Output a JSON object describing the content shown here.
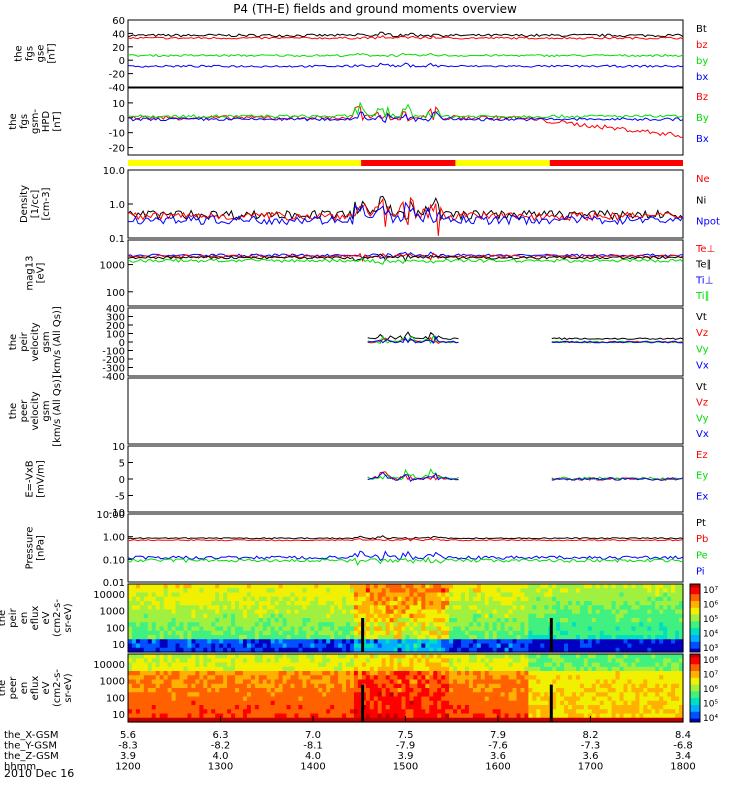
{
  "title": "P4 (TH-E) fields and ground moments overview",
  "date": "2010 Dec 16",
  "colors": {
    "black": "#000000",
    "red": "#ff0000",
    "green": "#00dd00",
    "blue": "#0000ff",
    "yellow": "#ffff00"
  },
  "chart_data": {
    "type": "line",
    "x_axis": {
      "range": [
        "1200",
        "1800"
      ],
      "rows": [
        {
          "label": "the_X-GSM",
          "values": [
            "5.6",
            "6.3",
            "7.0",
            "7.5",
            "7.9",
            "8.2",
            "8.4"
          ]
        },
        {
          "label": "the_Y-GSM",
          "values": [
            "-8.3",
            "-8.2",
            "-8.1",
            "-7.9",
            "-7.6",
            "-7.3",
            "-6.8"
          ]
        },
        {
          "label": "the_Z-GSM",
          "values": [
            "3.9",
            "4.0",
            "4.0",
            "3.9",
            "3.6",
            "3.6",
            "3.4"
          ]
        },
        {
          "label": "hhmm",
          "values": [
            "1200",
            "1300",
            "1400",
            "1500",
            "1600",
            "1700",
            "1800"
          ]
        }
      ]
    },
    "panels": [
      {
        "ylabel": [
          "the",
          "fgs",
          "gse",
          "[nT]"
        ],
        "ylim": [
          -40,
          60
        ],
        "ticks": [
          "60",
          "40",
          "20",
          "0",
          "-20",
          "-40"
        ],
        "legend": [
          {
            "name": "Bt",
            "color": "black"
          },
          {
            "name": "bz",
            "color": "red"
          },
          {
            "name": "by",
            "color": "green"
          },
          {
            "name": "bx",
            "color": "blue"
          }
        ],
        "series": [
          {
            "name": "Bt",
            "color": "black",
            "base": 37,
            "noise": 2,
            "burst": 6
          },
          {
            "name": "bz",
            "color": "red",
            "base": 33,
            "noise": 1.5,
            "burst": 5
          },
          {
            "name": "by",
            "color": "green",
            "base": 7,
            "noise": 1.5,
            "burst": 4
          },
          {
            "name": "bx",
            "color": "blue",
            "base": -9,
            "noise": 1.5,
            "burst": 6
          }
        ]
      },
      {
        "ylabel": [
          "the",
          "fgs",
          "gsm-",
          "HPD",
          "[nT]"
        ],
        "ylim": [
          -25,
          20
        ],
        "ticks": [
          "10",
          "0",
          "-10",
          "-20"
        ],
        "legend": [
          {
            "name": "Bz",
            "color": "red"
          },
          {
            "name": "By",
            "color": "green"
          },
          {
            "name": "Bx",
            "color": "blue"
          }
        ],
        "series": [
          {
            "name": "Bz",
            "color": "red",
            "base": 0,
            "noise": 1.5,
            "burst": 10
          },
          {
            "name": "By",
            "color": "green",
            "base": 1,
            "noise": 1,
            "burst": 12
          },
          {
            "name": "Bx",
            "color": "blue",
            "base": -1,
            "noise": 1,
            "burst": 8
          }
        ]
      },
      {
        "ylabel": [
          "Density",
          "[1/cc]",
          "[cm-3]"
        ],
        "ylim": [
          0.1,
          10
        ],
        "log": true,
        "ticks": [
          "10.0",
          "1.0",
          "0.1"
        ],
        "legend": [
          {
            "name": "Ne",
            "color": "red"
          },
          {
            "name": "Ni",
            "color": "black"
          },
          {
            "name": "Npot",
            "color": "blue"
          }
        ],
        "series": [
          {
            "name": "Ni",
            "color": "black",
            "base": 0.5,
            "noise": 0.15,
            "burst": 1.5
          },
          {
            "name": "Ne",
            "color": "red",
            "base": 0.45,
            "noise": 0.12,
            "burst": 2
          },
          {
            "name": "Npot",
            "color": "blue",
            "base": 0.35,
            "noise": 0.1,
            "burst": 1
          }
        ]
      },
      {
        "ylabel": [
          "mag13",
          "[eV]"
        ],
        "ylim": [
          30,
          8000
        ],
        "log": true,
        "ticks": [
          "1000",
          "100"
        ],
        "legend": [
          {
            "name": "Te⊥",
            "color": "red"
          },
          {
            "name": "Te∥",
            "color": "black"
          },
          {
            "name": "Ti⊥",
            "color": "blue"
          },
          {
            "name": "Ti∥",
            "color": "green"
          }
        ],
        "series": [
          {
            "name": "Ti⊥",
            "color": "blue",
            "base": 2200,
            "noise": 250,
            "burst": -1200
          },
          {
            "name": "Te⊥",
            "color": "red",
            "base": 2000,
            "noise": 250,
            "burst": -1400
          },
          {
            "name": "Te∥",
            "color": "black",
            "base": 1800,
            "noise": 200,
            "burst": -1200
          },
          {
            "name": "Ti∥",
            "color": "green",
            "base": 1400,
            "noise": 200,
            "burst": -900
          }
        ]
      },
      {
        "ylabel": [
          "the",
          "peir",
          "velocity",
          "gsm",
          "[km/s (All Qs)]"
        ],
        "ylim": [
          -400,
          400
        ],
        "ticks": [
          "400",
          "300",
          "200",
          "100",
          "0",
          "-100",
          "-200",
          "-300",
          "-400"
        ],
        "legend": [
          {
            "name": "Vt",
            "color": "black"
          },
          {
            "name": "Vz",
            "color": "red"
          },
          {
            "name": "Vy",
            "color": "green"
          },
          {
            "name": "Vx",
            "color": "blue"
          }
        ],
        "series": [
          {
            "name": "Vt",
            "color": "black",
            "base": 40,
            "noise": 10,
            "burst": 150
          },
          {
            "name": "Vz",
            "color": "red",
            "base": 0,
            "noise": 10,
            "burst": 80
          },
          {
            "name": "Vy",
            "color": "green",
            "base": 0,
            "noise": 10,
            "burst": 90
          },
          {
            "name": "Vx",
            "color": "blue",
            "base": 0,
            "noise": 10,
            "burst": 80
          }
        ]
      },
      {
        "ylabel": [
          "the",
          "peer",
          "velocity",
          "gsm",
          "[km/s (All Qs)]"
        ],
        "ylim": [
          -400,
          400
        ],
        "ticks": [],
        "legend": [
          {
            "name": "Vt",
            "color": "black"
          },
          {
            "name": "Vz",
            "color": "red"
          },
          {
            "name": "Vy",
            "color": "green"
          },
          {
            "name": "Vx",
            "color": "blue"
          }
        ],
        "series": []
      },
      {
        "ylabel": [
          "E=-VxB",
          "[mV/m]"
        ],
        "ylim": [
          -10,
          10
        ],
        "ticks": [
          "10",
          "5",
          "0",
          "-5",
          "-10"
        ],
        "legend": [
          {
            "name": "Ez",
            "color": "red"
          },
          {
            "name": "Ey",
            "color": "green"
          },
          {
            "name": "Ex",
            "color": "blue"
          }
        ],
        "series": [
          {
            "name": "Ez",
            "color": "red",
            "base": 0,
            "noise": 0.4,
            "burst": 3
          },
          {
            "name": "Ey",
            "color": "green",
            "base": 0.2,
            "noise": 0.4,
            "burst": 4
          },
          {
            "name": "Ex",
            "color": "blue",
            "base": 0,
            "noise": 0.4,
            "burst": 3
          }
        ]
      },
      {
        "ylabel": [
          "Pressure",
          "[nPa]"
        ],
        "ylim": [
          0.01,
          10
        ],
        "log": true,
        "ticks": [
          "10.00",
          "1.00",
          "0.10",
          "0.01"
        ],
        "legend": [
          {
            "name": "Pt",
            "color": "black"
          },
          {
            "name": "Pb",
            "color": "red"
          },
          {
            "name": "Pe",
            "color": "green"
          },
          {
            "name": "Pi",
            "color": "blue"
          }
        ],
        "series": [
          {
            "name": "Pt",
            "color": "black",
            "base": 0.85,
            "noise": 0.05,
            "burst": 0.3
          },
          {
            "name": "Pb",
            "color": "red",
            "base": 0.7,
            "noise": 0.04,
            "burst": 0.2
          },
          {
            "name": "Pi",
            "color": "blue",
            "base": 0.12,
            "noise": 0.02,
            "burst": 0.15
          },
          {
            "name": "Pe",
            "color": "green",
            "base": 0.09,
            "noise": 0.015,
            "burst": -0.05
          }
        ]
      },
      {
        "ylabel": [
          "the",
          "peir",
          "en",
          "eflux",
          "eV",
          "(cm2-s-",
          "sr-eV)"
        ],
        "ticks": [
          "10000",
          "1000",
          "100",
          "10"
        ],
        "spectrogram": "ion",
        "colorbar": [
          "10⁷",
          "10⁶",
          "10⁵",
          "10⁴",
          "10³"
        ]
      },
      {
        "ylabel": [
          "the",
          "peer",
          "en",
          "eflux",
          "eV",
          "(cm2-s-",
          "sr-eV)"
        ],
        "ticks": [
          "10000",
          "1000",
          "100",
          "10"
        ],
        "spectrogram": "electron",
        "colorbar": [
          "10⁸",
          "10⁷",
          "10⁶",
          "10⁵",
          "10⁴"
        ]
      }
    ]
  }
}
